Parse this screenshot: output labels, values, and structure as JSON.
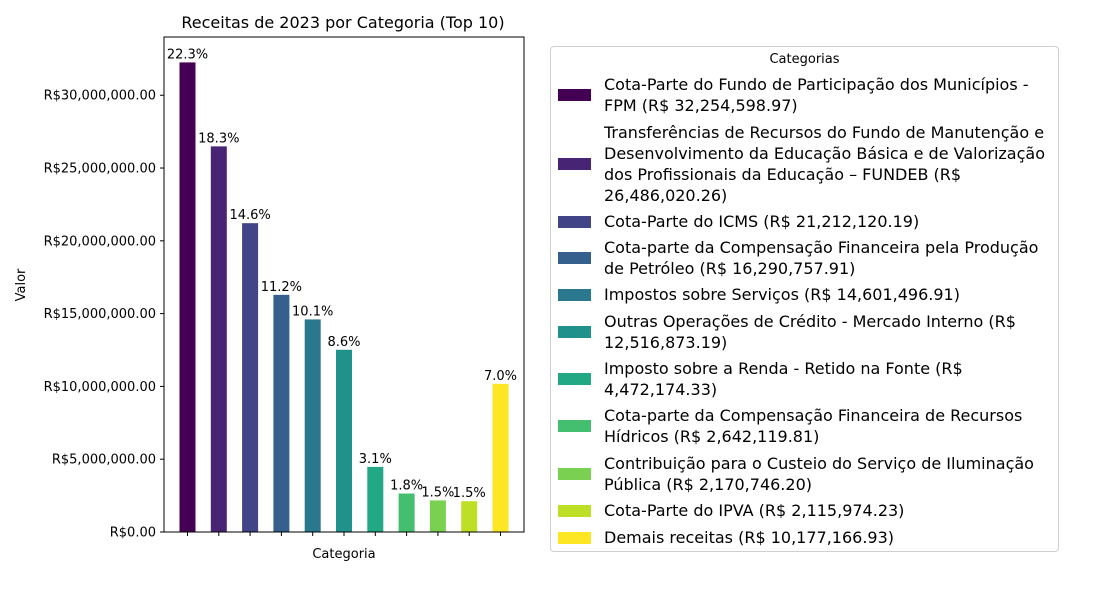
{
  "chart_data": {
    "type": "bar",
    "title": "Receitas de 2023 por Categoria (Top 10)",
    "xlabel": "Categoria",
    "ylabel": "Valor",
    "ylim": [
      0,
      34000000
    ],
    "yticks": [
      0,
      5000000,
      10000000,
      15000000,
      20000000,
      25000000,
      30000000
    ],
    "ytick_labels": [
      "R$0.00",
      "R$5,000,000.00",
      "R$10,000,000.00",
      "R$15,000,000.00",
      "R$20,000,000.00",
      "R$25,000,000.00",
      "R$30,000,000.00"
    ],
    "grid": false,
    "legend_title": "Categorias",
    "legend_position": "right",
    "categories": [
      "Cota-Parte do Fundo de Participação dos Municípios - FPM",
      "Transferências de Recursos do Fundo de Manutenção e Desenvolvimento da Educação Básica e de Valorização dos Profissionais da Educação – FUNDEB",
      "Cota-Parte do ICMS",
      "Cota-parte da Compensação Financeira pela Produção de Petróleo",
      "Impostos sobre Serviços",
      "Outras Operações de Crédito - Mercado Interno",
      "Imposto sobre a Renda - Retido na Fonte",
      "Cota-parte da Compensação Financeira de Recursos Hídricos",
      "Contribuição para o Custeio do Serviço de Iluminação Pública",
      "Cota-Parte do IPVA",
      "Demais receitas"
    ],
    "values": [
      32254598.97,
      26486020.26,
      21212120.19,
      16290757.91,
      14601496.91,
      12516873.19,
      4472174.33,
      2642119.81,
      2170746.2,
      2115974.23,
      10177166.93
    ],
    "bar_labels": [
      "22.3%",
      "18.3%",
      "14.6%",
      "11.2%",
      "10.1%",
      "8.6%",
      "3.1%",
      "1.8%",
      "1.5%",
      "1.5%",
      "7.0%"
    ],
    "legend_labels": [
      "Cota-Parte do Fundo de Participação dos Municípios - FPM (R$ 32,254,598.97)",
      "Transferências de Recursos do Fundo de Manutenção e Desenvolvimento da Educação Básica e de Valorização dos Profissionais da Educação – FUNDEB (R$ 26,486,020.26)",
      "Cota-Parte do ICMS (R$ 21,212,120.19)",
      "Cota-parte da Compensação Financeira pela Produção de Petróleo (R$ 16,290,757.91)",
      "Impostos sobre Serviços (R$ 14,601,496.91)",
      "Outras Operações de Crédito - Mercado Interno (R$ 12,516,873.19)",
      "Imposto sobre a Renda - Retido na Fonte (R$ 4,472,174.33)",
      "Cota-parte da Compensação Financeira de Recursos Hídricos (R$ 2,642,119.81)",
      "Contribuição para o Custeio do Serviço de Iluminação Pública (R$ 2,170,746.20)",
      "Cota-Parte do IPVA (R$ 2,115,974.23)",
      "Demais receitas (R$ 10,177,166.93)"
    ],
    "colors": [
      "#440154",
      "#482475",
      "#414487",
      "#355f8d",
      "#2a788e",
      "#21918c",
      "#22a884",
      "#44bf70",
      "#7ad151",
      "#bddf26",
      "#fde725"
    ]
  }
}
